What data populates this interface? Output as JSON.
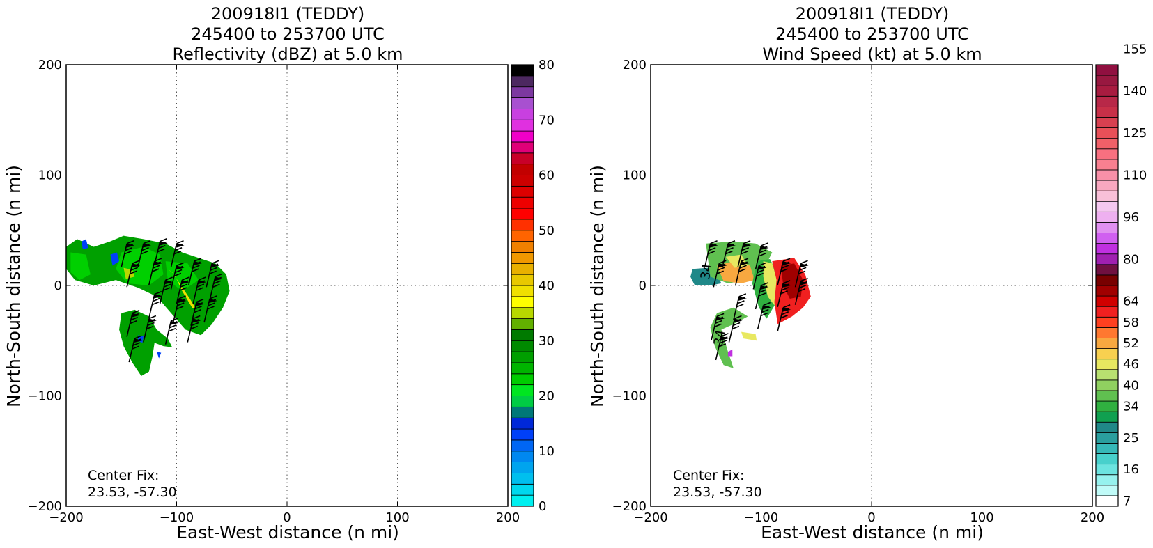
{
  "chart_data": [
    {
      "type": "heatmap",
      "title_lines": [
        "200918I1 (TEDDY)",
        "245400 to 253700 UTC",
        "Reflectivity (dBZ) at 5.0 km"
      ],
      "xlabel": "East-West distance (n mi)",
      "ylabel": "North-South distance (n mi)",
      "xlim": [
        -200,
        200
      ],
      "ylim": [
        -200,
        200
      ],
      "xticks": [
        -200,
        -100,
        0,
        100,
        200
      ],
      "yticks": [
        -200,
        -100,
        0,
        100,
        200
      ],
      "x_tick_labels": [
        "−200",
        "−100",
        "0",
        "100",
        "200"
      ],
      "y_tick_labels": [
        "−200",
        "−100",
        "0",
        "100",
        "200"
      ],
      "grid": true,
      "annotation_lines": [
        "Center Fix:",
        "23.53, -57.30"
      ],
      "colorbar": {
        "min": 0,
        "max": 80,
        "step": 2.5,
        "tick_values": [
          0,
          10,
          20,
          30,
          40,
          50,
          60,
          70,
          80
        ],
        "tick_labels": [
          "0",
          "10",
          "20",
          "30",
          "40",
          "50",
          "60",
          "70",
          "80"
        ],
        "colors": [
          "#00f0f0",
          "#00d8ee",
          "#00bfee",
          "#00a4ee",
          "#0088f0",
          "#0066f4",
          "#0040f8",
          "#0028d8",
          "#007878",
          "#00cc44",
          "#00e620",
          "#00cc00",
          "#00b400",
          "#009f00",
          "#008a00",
          "#007a00",
          "#62b000",
          "#b8d800",
          "#ffff00",
          "#f0e000",
          "#e8c800",
          "#e8b000",
          "#f09800",
          "#f08000",
          "#ff6400",
          "#ff3000",
          "#ff0000",
          "#ee0000",
          "#dd0000",
          "#cc0000",
          "#c20000",
          "#c80028",
          "#e00078",
          "#f000c8",
          "#e030e0",
          "#c840e0",
          "#a850d0",
          "#7c38a0",
          "#4c2860",
          "#000000"
        ]
      },
      "echo_fields": [
        {
          "color": "#00a000",
          "points": [
            [
              -200,
              35
            ],
            [
              -190,
              42
            ],
            [
              -175,
              35
            ],
            [
              -160,
              40
            ],
            [
              -148,
              45
            ],
            [
              -130,
              42
            ],
            [
              -110,
              38
            ],
            [
              -95,
              30
            ],
            [
              -80,
              25
            ],
            [
              -65,
              20
            ],
            [
              -55,
              10
            ],
            [
              -52,
              -5
            ],
            [
              -58,
              -20
            ],
            [
              -68,
              -35
            ],
            [
              -78,
              -45
            ],
            [
              -92,
              -40
            ],
            [
              -105,
              -25
            ],
            [
              -118,
              -10
            ],
            [
              -135,
              -2
            ],
            [
              -155,
              5
            ],
            [
              -175,
              0
            ],
            [
              -192,
              5
            ],
            [
              -200,
              15
            ]
          ]
        },
        {
          "color": "#00a000",
          "points": [
            [
              -150,
              -25
            ],
            [
              -138,
              -22
            ],
            [
              -125,
              -28
            ],
            [
              -118,
              -40
            ],
            [
              -108,
              -48
            ],
            [
              -104,
              -56
            ],
            [
              -112,
              -55
            ],
            [
              -120,
              -52
            ],
            [
              -122,
              -65
            ],
            [
              -125,
              -78
            ],
            [
              -132,
              -82
            ],
            [
              -140,
              -70
            ],
            [
              -148,
              -55
            ],
            [
              -152,
              -40
            ]
          ]
        },
        {
          "color": "#00d000",
          "points": [
            [
              -196,
              30
            ],
            [
              -182,
              28
            ],
            [
              -178,
              10
            ],
            [
              -188,
              5
            ],
            [
              -196,
              12
            ]
          ]
        },
        {
          "color": "#00d000",
          "points": [
            [
              -150,
              30
            ],
            [
              -130,
              35
            ],
            [
              -115,
              28
            ],
            [
              -112,
              10
            ],
            [
              -125,
              0
            ],
            [
              -145,
              2
            ],
            [
              -155,
              15
            ]
          ]
        },
        {
          "color": "#00d000",
          "points": [
            [
              -110,
              22
            ],
            [
              -90,
              20
            ],
            [
              -80,
              5
            ],
            [
              -95,
              -5
            ],
            [
              -108,
              5
            ]
          ]
        },
        {
          "color": "#f0e000",
          "points": [
            [
              -108,
              15
            ],
            [
              -102,
              10
            ],
            [
              -95,
              -5
            ],
            [
              -86,
              -20
            ],
            [
              -82,
              -22
            ],
            [
              -88,
              -12
            ],
            [
              -96,
              0
            ],
            [
              -104,
              12
            ]
          ]
        },
        {
          "color": "#b8d800",
          "points": [
            [
              -148,
              16
            ],
            [
              -140,
              14
            ],
            [
              -138,
              8
            ],
            [
              -146,
              6
            ]
          ]
        },
        {
          "color": "#0040f8",
          "points": [
            [
              -160,
              28
            ],
            [
              -154,
              30
            ],
            [
              -152,
              22
            ],
            [
              -158,
              18
            ]
          ]
        },
        {
          "color": "#0040f8",
          "points": [
            [
              -186,
              40
            ],
            [
              -182,
              42
            ],
            [
              -180,
              34
            ],
            [
              -185,
              33
            ]
          ]
        },
        {
          "color": "#0040f8",
          "points": [
            [
              -135,
              -45
            ],
            [
              -130,
              -46
            ],
            [
              -131,
              -52
            ],
            [
              -135,
              -50
            ]
          ]
        },
        {
          "color": "#0040f8",
          "points": [
            [
              -118,
              -60
            ],
            [
              -114,
              -61
            ],
            [
              -116,
              -66
            ]
          ]
        }
      ],
      "barbs": [
        {
          "x": -145,
          "y": 38
        },
        {
          "x": -130,
          "y": 38
        },
        {
          "x": -115,
          "y": 40
        },
        {
          "x": -100,
          "y": 38
        },
        {
          "x": -140,
          "y": 20
        },
        {
          "x": -120,
          "y": 22
        },
        {
          "x": -100,
          "y": 18
        },
        {
          "x": -84,
          "y": 22
        },
        {
          "x": -68,
          "y": 20
        },
        {
          "x": -110,
          "y": 5
        },
        {
          "x": -95,
          "y": 5
        },
        {
          "x": -80,
          "y": 5
        },
        {
          "x": -65,
          "y": 8
        },
        {
          "x": -120,
          "y": -8
        },
        {
          "x": -98,
          "y": -12
        },
        {
          "x": -82,
          "y": -15
        },
        {
          "x": -70,
          "y": -12
        },
        {
          "x": -140,
          "y": -25
        },
        {
          "x": -125,
          "y": -30
        },
        {
          "x": -105,
          "y": -32
        },
        {
          "x": -85,
          "y": -30
        },
        {
          "x": -138,
          "y": -48
        }
      ]
    },
    {
      "type": "heatmap",
      "title_lines": [
        "200918I1 (TEDDY)",
        "245400 to 253700 UTC",
        "Wind Speed (kt) at 5.0 km"
      ],
      "xlabel": "East-West distance (n mi)",
      "ylabel": "North-South distance (n mi)",
      "xlim": [
        -200,
        200
      ],
      "ylim": [
        -200,
        200
      ],
      "xticks": [
        -200,
        -100,
        0,
        100,
        200
      ],
      "yticks": [
        -200,
        -100,
        0,
        100,
        200
      ],
      "x_tick_labels": [
        "−200",
        "−100",
        "0",
        "100",
        "200"
      ],
      "y_tick_labels": [
        "−200",
        "−100",
        "0",
        "100",
        "200"
      ],
      "grid": true,
      "annotation_lines": [
        "Center Fix:",
        "23.53, -57.30"
      ],
      "contour_labels": [
        {
          "text": "34",
          "x": -146,
          "y": 12
        },
        {
          "text": "34",
          "x": -134,
          "y": -48
        }
      ],
      "colorbar": {
        "min": 4,
        "max": 160,
        "step": 3,
        "tick_values": [
          7,
          16,
          25,
          34,
          40,
          46,
          52,
          58,
          64,
          80,
          96,
          110,
          125,
          140,
          155
        ],
        "tick_labels": [
          "7",
          "16",
          "25",
          "34",
          "40",
          "46",
          "52",
          "58",
          "64",
          "80",
          "96",
          "110",
          "125",
          "140",
          "155"
        ],
        "tick_bins": [
          0,
          3,
          6,
          9,
          11,
          13,
          15,
          17,
          19,
          23,
          27,
          31,
          35,
          39,
          43
        ],
        "colors": [
          "#ffffff",
          "#c0fbf8",
          "#96f2ee",
          "#6ce4e0",
          "#48d0cc",
          "#36b8b8",
          "#2a9e9e",
          "#208888",
          "#10a050",
          "#30b040",
          "#60c050",
          "#90d060",
          "#b8e070",
          "#e8e860",
          "#f8d050",
          "#f8a840",
          "#ff7830",
          "#ff4020",
          "#f02020",
          "#d00000",
          "#a00000",
          "#780000",
          "#701040",
          "#a020b0",
          "#c030e0",
          "#d060f0",
          "#e090f0",
          "#eeb0f0",
          "#f4c8f0",
          "#f8c0d8",
          "#f8a8c0",
          "#f890a8",
          "#f88090",
          "#f87080",
          "#f06068",
          "#e85058",
          "#d84050",
          "#c83048",
          "#b82848",
          "#a81c40",
          "#981840",
          "#901040"
        ]
      },
      "echo_fields": [
        {
          "color": "#208888",
          "points": [
            [
              -162,
              15
            ],
            [
              -148,
              16
            ],
            [
              -140,
              10
            ],
            [
              -136,
              2
            ],
            [
              -146,
              0
            ],
            [
              -160,
              0
            ],
            [
              -164,
              8
            ]
          ]
        },
        {
          "color": "#60c050",
          "points": [
            [
              -150,
              38
            ],
            [
              -125,
              40
            ],
            [
              -105,
              38
            ],
            [
              -90,
              30
            ],
            [
              -100,
              10
            ],
            [
              -112,
              5
            ],
            [
              -130,
              2
            ],
            [
              -146,
              8
            ]
          ]
        },
        {
          "color": "#f8a840",
          "points": [
            [
              -140,
              18
            ],
            [
              -125,
              22
            ],
            [
              -110,
              18
            ],
            [
              -106,
              5
            ],
            [
              -118,
              2
            ],
            [
              -134,
              4
            ]
          ]
        },
        {
          "color": "#e8e860",
          "points": [
            [
              -132,
              26
            ],
            [
              -118,
              28
            ],
            [
              -112,
              18
            ],
            [
              -124,
              16
            ]
          ]
        },
        {
          "color": "#30b040",
          "points": [
            [
              -104,
              22
            ],
            [
              -92,
              24
            ],
            [
              -82,
              5
            ],
            [
              -86,
              -15
            ],
            [
              -95,
              -30
            ],
            [
              -102,
              -20
            ],
            [
              -108,
              2
            ]
          ]
        },
        {
          "color": "#e8e860",
          "points": [
            [
              -98,
              22
            ],
            [
              -90,
              20
            ],
            [
              -84,
              0
            ],
            [
              -88,
              -18
            ],
            [
              -94,
              -10
            ],
            [
              -98,
              8
            ]
          ]
        },
        {
          "color": "#f02020",
          "points": [
            [
              -90,
              22
            ],
            [
              -70,
              25
            ],
            [
              -60,
              10
            ],
            [
              -55,
              -10
            ],
            [
              -62,
              -20
            ],
            [
              -72,
              -28
            ],
            [
              -85,
              -35
            ],
            [
              -88,
              -15
            ],
            [
              -86,
              5
            ]
          ]
        },
        {
          "color": "#a00000",
          "points": [
            [
              -82,
              18
            ],
            [
              -70,
              20
            ],
            [
              -62,
              5
            ],
            [
              -64,
              -10
            ],
            [
              -74,
              -12
            ],
            [
              -80,
              0
            ]
          ]
        },
        {
          "color": "#60c050",
          "points": [
            [
              -140,
              -25
            ],
            [
              -125,
              -20
            ],
            [
              -112,
              -28
            ],
            [
              -125,
              -35
            ],
            [
              -136,
              -40
            ],
            [
              -130,
              -60
            ],
            [
              -125,
              -75
            ],
            [
              -134,
              -72
            ],
            [
              -142,
              -55
            ],
            [
              -146,
              -38
            ]
          ]
        },
        {
          "color": "#e8e860",
          "points": [
            [
              -118,
              -42
            ],
            [
              -105,
              -44
            ],
            [
              -104,
              -50
            ],
            [
              -116,
              -48
            ]
          ]
        },
        {
          "color": "#c030e0",
          "points": [
            [
              -130,
              -60
            ],
            [
              -126,
              -58
            ],
            [
              -126,
              -64
            ],
            [
              -130,
              -64
            ]
          ]
        }
      ],
      "barbs": [
        {
          "x": -146,
          "y": 38
        },
        {
          "x": -130,
          "y": 38
        },
        {
          "x": -116,
          "y": 38
        },
        {
          "x": -100,
          "y": 36
        },
        {
          "x": -138,
          "y": 20
        },
        {
          "x": -118,
          "y": 22
        },
        {
          "x": -102,
          "y": 18
        },
        {
          "x": -80,
          "y": 22
        },
        {
          "x": -64,
          "y": 20
        },
        {
          "x": -100,
          "y": 0
        },
        {
          "x": -80,
          "y": 2
        },
        {
          "x": -64,
          "y": 4
        },
        {
          "x": -120,
          "y": -10
        },
        {
          "x": -98,
          "y": -18
        },
        {
          "x": -80,
          "y": -20
        },
        {
          "x": -140,
          "y": -28
        },
        {
          "x": -124,
          "y": -30
        },
        {
          "x": -136,
          "y": -46
        }
      ]
    }
  ]
}
